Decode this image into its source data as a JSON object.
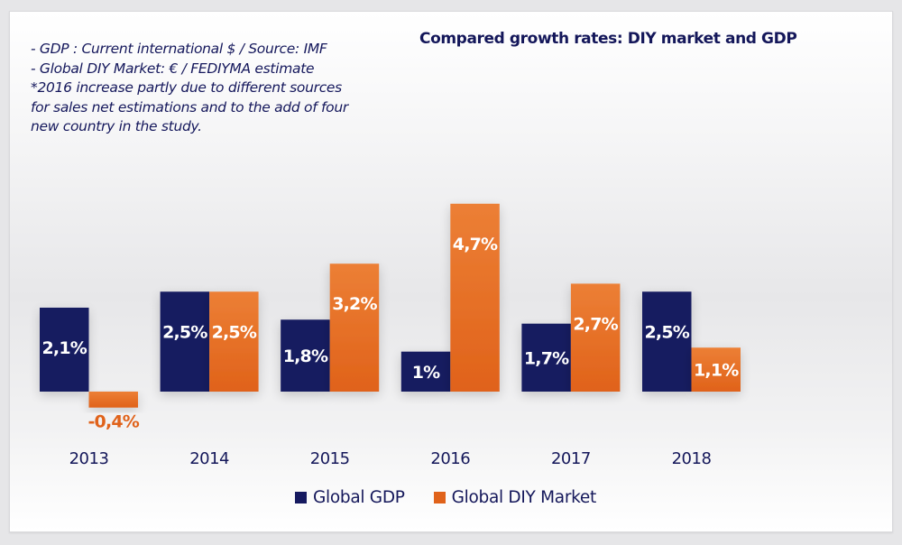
{
  "notes": [
    "- GDP : Current international $ / Source: IMF",
    "- Global DIY Market: € / FEDIYMA estimate",
    "*2016 increase partly due to different sources",
    "for sales net estimations and to the add of four",
    "new country in the study."
  ],
  "colors": {
    "gdp": "#161a60",
    "diy_top": "#ec7f35",
    "diy_bottom": "#e0621a",
    "text_dark": "#14175a",
    "label_light": "#ffffff",
    "label_negative": "#e0621a"
  },
  "chart_data": {
    "type": "bar",
    "title": "Compared growth rates: DIY market and GDP",
    "xlabel": "",
    "ylabel": "",
    "categories": [
      "2013",
      "2014",
      "2015",
      "2016",
      "2017",
      "2018"
    ],
    "series": [
      {
        "name": "Global GDP",
        "values": [
          2.1,
          2.5,
          1.8,
          1.0,
          1.7,
          2.5
        ],
        "labels": [
          "2,1%",
          "2,5%",
          "1,8%",
          "1%",
          "1,7%",
          "2,5%"
        ]
      },
      {
        "name": "Global DIY Market",
        "values": [
          -0.4,
          2.5,
          3.2,
          4.7,
          2.7,
          1.1
        ],
        "labels": [
          "-0,4%",
          "2,5%",
          "3,2%",
          "4,7%",
          "2,7%",
          "1,1%"
        ]
      }
    ],
    "ylim": [
      -0.5,
      5.0
    ],
    "grid": false,
    "axis_visible": false,
    "legend_position": "bottom"
  }
}
